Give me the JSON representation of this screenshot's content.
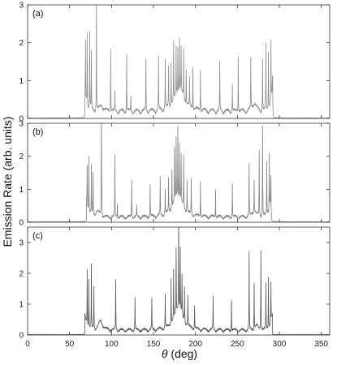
{
  "chart_data": {
    "type": "line",
    "xlabel_symbol": "θ",
    "xlabel_unit": " (deg)",
    "ylabel": "Emission Rate (arb. units)",
    "xlim": [
      0,
      360
    ],
    "x_ticks": [
      0,
      50,
      100,
      150,
      200,
      250,
      300,
      350
    ],
    "series_color": "#8a8a8a",
    "panels": [
      {
        "label": "(a)",
        "ylim": [
          0,
          3
        ],
        "y_ticks": [
          0,
          1,
          2,
          3
        ],
        "color": "#8c8c8c",
        "baseline": 0.08,
        "lobes": [
          [
            70,
            290,
            0.12
          ]
        ],
        "humps": [
          [
            181,
            7,
            0.55
          ],
          [
            270,
            3,
            0.22
          ],
          [
            88,
            3,
            0.15
          ]
        ],
        "peaks": [
          [
            69,
            1.45
          ],
          [
            71,
            1.95
          ],
          [
            74,
            2.05
          ],
          [
            76,
            1.5
          ],
          [
            82,
            2.82
          ],
          [
            99,
            1.72
          ],
          [
            104,
            0.5
          ],
          [
            118,
            1.55
          ],
          [
            123,
            0.4
          ],
          [
            141,
            1.35
          ],
          [
            156,
            1.35
          ],
          [
            164,
            1.3
          ],
          [
            168,
            1.05
          ],
          [
            171,
            1.15
          ],
          [
            174,
            1.55
          ],
          [
            177,
            1.3
          ],
          [
            179,
            1.25
          ],
          [
            181,
            1.4
          ],
          [
            183,
            1.2
          ],
          [
            186,
            1.3
          ],
          [
            189,
            0.95
          ],
          [
            193,
            0.75
          ],
          [
            197,
            1.15
          ],
          [
            206,
            1.1
          ],
          [
            229,
            1.3
          ],
          [
            244,
            0.75
          ],
          [
            251,
            1.5
          ],
          [
            266,
            1.35
          ],
          [
            280,
            1.35
          ],
          [
            284,
            1.75
          ],
          [
            287,
            1.55
          ],
          [
            290,
            1.6
          ],
          [
            292,
            1.1
          ]
        ]
      },
      {
        "label": "(b)",
        "ylim": [
          0,
          3
        ],
        "y_ticks": [
          0,
          1,
          2,
          3
        ],
        "color": "#808080",
        "baseline": 0.06,
        "lobes": [
          [
            72,
            288,
            0.1
          ]
        ],
        "humps": [
          [
            179,
            7,
            0.6
          ],
          [
            270,
            3,
            0.18
          ],
          [
            83,
            3,
            0.18
          ]
        ],
        "peaks": [
          [
            71,
            1.25
          ],
          [
            73,
            1.65
          ],
          [
            76,
            1.45
          ],
          [
            78,
            1.25
          ],
          [
            88,
            3.7
          ],
          [
            104,
            1.85
          ],
          [
            107,
            0.45
          ],
          [
            124,
            1.15
          ],
          [
            130,
            0.35
          ],
          [
            146,
            0.95
          ],
          [
            158,
            1.15
          ],
          [
            164,
            0.75
          ],
          [
            168,
            1.0
          ],
          [
            172,
            1.15
          ],
          [
            175,
            1.6
          ],
          [
            177,
            1.85
          ],
          [
            179,
            2.2
          ],
          [
            181,
            1.7
          ],
          [
            183,
            1.45
          ],
          [
            186,
            1.6
          ],
          [
            190,
            1.0
          ],
          [
            195,
            1.1
          ],
          [
            206,
            1.1
          ],
          [
            224,
            0.85
          ],
          [
            244,
            1.05
          ],
          [
            264,
            1.6
          ],
          [
            270,
            1.0
          ],
          [
            276,
            2.0
          ],
          [
            280,
            2.75
          ],
          [
            285,
            1.6
          ],
          [
            288,
            1.7
          ],
          [
            290,
            1.4
          ]
        ]
      },
      {
        "label": "(c)",
        "ylim": [
          0,
          3.5
        ],
        "y_ticks": [
          0,
          1,
          2,
          3
        ],
        "color": "#555555",
        "baseline": 0.06,
        "lobes": [
          [
            70,
            290,
            0.1
          ]
        ],
        "humps": [
          [
            180,
            6,
            0.7
          ],
          [
            87,
            3,
            0.3
          ],
          [
            273,
            2,
            0.15
          ]
        ],
        "peaks": [
          [
            71,
            1.85
          ],
          [
            73,
            1.55
          ],
          [
            76,
            2.05
          ],
          [
            79,
            1.35
          ],
          [
            105,
            1.65
          ],
          [
            128,
            1.05
          ],
          [
            148,
            1.0
          ],
          [
            164,
            1.1
          ],
          [
            171,
            1.5
          ],
          [
            174,
            1.6
          ],
          [
            177,
            2.1
          ],
          [
            180,
            3.5
          ],
          [
            182,
            2.05
          ],
          [
            184,
            1.3
          ],
          [
            187,
            1.15
          ],
          [
            191,
            1.0
          ],
          [
            199,
            0.75
          ],
          [
            221,
            1.05
          ],
          [
            243,
            1.0
          ],
          [
            264,
            2.55
          ],
          [
            270,
            1.55
          ],
          [
            278,
            2.65
          ],
          [
            284,
            1.5
          ],
          [
            287,
            1.7
          ],
          [
            290,
            1.3
          ]
        ]
      }
    ]
  }
}
